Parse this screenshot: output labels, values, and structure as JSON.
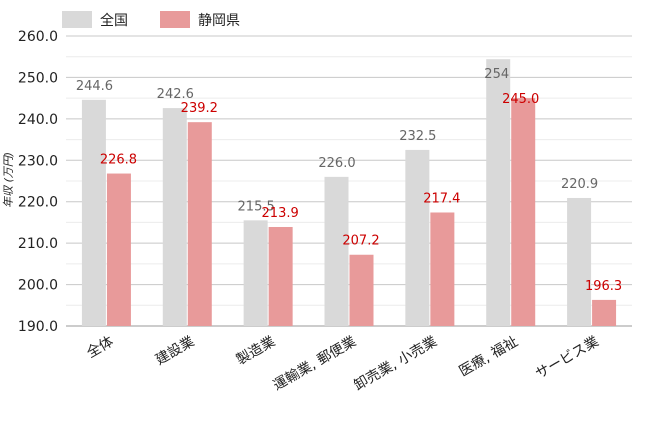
{
  "chart_data": {
    "type": "bar",
    "ylabel": "年収 (万円)",
    "ylim": [
      190,
      260
    ],
    "yticks": [
      "190.0",
      "200.0",
      "210.0",
      "220.0",
      "230.0",
      "240.0",
      "250.0",
      "260.0"
    ],
    "categories": [
      "全体",
      "建設業",
      "製造業",
      "運輸業, 郵便業",
      "卸売業, 小売業",
      "医療, 福祉",
      "サービス業"
    ],
    "series": [
      {
        "name": "全国",
        "color": "#d9d9d9",
        "label_color": "#666666",
        "values": [
          244.6,
          242.6,
          215.5,
          226.0,
          232.5,
          254.4,
          220.9
        ],
        "labels": [
          "244.6",
          "242.6",
          "215.5",
          "226.0",
          "232.5",
          "254",
          "220.9"
        ]
      },
      {
        "name": "静岡県",
        "color": "#e89a9a",
        "label_color": "#cc0000",
        "values": [
          226.8,
          239.2,
          213.9,
          207.2,
          217.4,
          245.0,
          196.3
        ],
        "labels": [
          "226.8",
          "239.2",
          "213.9",
          "207.2",
          "217.4",
          "245.0",
          "196.3"
        ]
      }
    ],
    "grid": true,
    "legend": "top-left"
  }
}
